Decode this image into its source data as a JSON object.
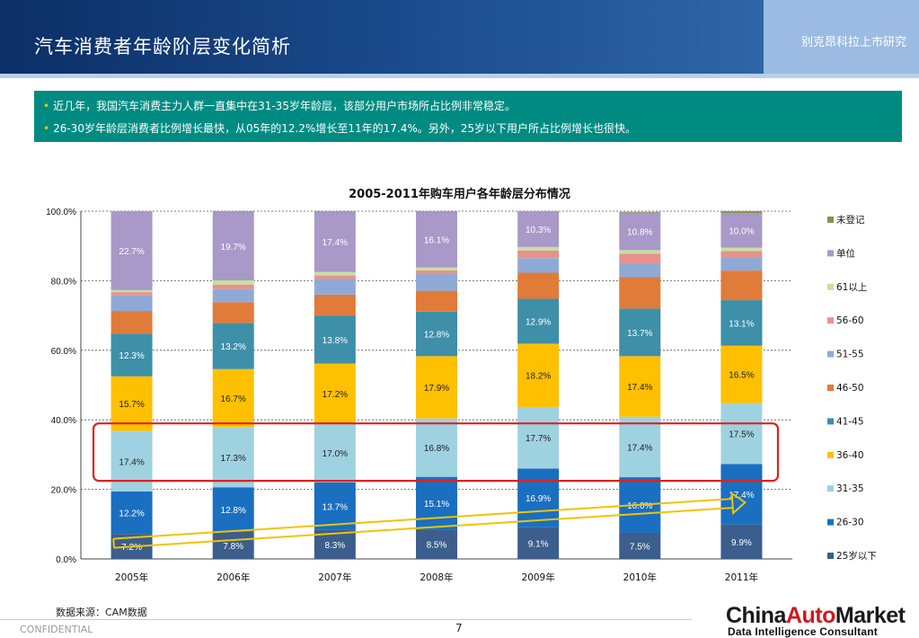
{
  "header": {
    "title": "汽车消费者年龄阶层变化简析",
    "tag": "别克昂科拉上市研究"
  },
  "summary": {
    "lines": [
      "近几年，我国汽车消费主力人群一直集中在31-35岁年龄层，该部分用户市场所占比例非常稳定。",
      "26-30岁年龄层消费者比例增长最快，从05年的12.2%增长至11年的17.4%。另外，25岁以下用户所占比例增长也很快。"
    ]
  },
  "footer": {
    "source": "数据来源：CAM数据",
    "confidential": "CONFIDENTIAL",
    "page": "7"
  },
  "logo": {
    "main_a": "China",
    "main_b": "Auto",
    "main_c": "Market",
    "sub": "Data Intelligence Consultant"
  },
  "chart_data": {
    "type": "bar",
    "stacked": true,
    "title": "2005-2011年购车用户各年龄层分布情况",
    "xlabel": "",
    "ylabel": "",
    "categories": [
      "2005年",
      "2006年",
      "2007年",
      "2008年",
      "2009年",
      "2010年",
      "2011年"
    ],
    "ylim": [
      0,
      100
    ],
    "yticks": [
      "0.0%",
      "20.0%",
      "40.0%",
      "60.0%",
      "80.0%",
      "100.0%"
    ],
    "grid": true,
    "legend_position": "right",
    "series": [
      {
        "name": "25岁以下",
        "color": "#3b5e8c",
        "values": [
          7.2,
          7.8,
          8.3,
          8.5,
          9.1,
          7.5,
          9.9
        ],
        "labels": [
          "7.2%",
          "7.8%",
          "8.3%",
          "8.5%",
          "9.1%",
          "7.5%",
          "9.9%"
        ]
      },
      {
        "name": "26-30",
        "color": "#1a6fc0",
        "values": [
          12.2,
          12.8,
          13.7,
          15.1,
          16.9,
          16.0,
          17.4
        ],
        "labels": [
          "12.2%",
          "12.8%",
          "13.7%",
          "15.1%",
          "16.9%",
          "16.0%",
          "17.4%"
        ]
      },
      {
        "name": "31-35",
        "color": "#9fd2e1",
        "values": [
          17.4,
          17.3,
          17.0,
          16.8,
          17.7,
          17.4,
          17.5
        ],
        "labels": [
          "17.4%",
          "17.3%",
          "17.0%",
          "16.8%",
          "17.7%",
          "17.4%",
          "17.5%"
        ]
      },
      {
        "name": "36-40",
        "color": "#ffc000",
        "values": [
          15.7,
          16.7,
          17.2,
          17.9,
          18.2,
          17.4,
          16.5
        ],
        "labels": [
          "15.7%",
          "16.7%",
          "17.2%",
          "17.9%",
          "18.2%",
          "17.4%",
          "16.5%"
        ]
      },
      {
        "name": "41-45",
        "color": "#3e8fa8",
        "values": [
          12.3,
          13.2,
          13.8,
          12.8,
          12.9,
          13.7,
          13.1
        ],
        "labels": [
          "12.3%",
          "13.2%",
          "13.8%",
          "12.8%",
          "12.9%",
          "13.7%",
          "13.1%"
        ]
      },
      {
        "name": "46-50",
        "color": "#e07b39",
        "values": [
          6.5,
          6.0,
          6.0,
          6.0,
          7.5,
          9.0,
          8.5
        ],
        "labels": [
          "",
          "",
          "",
          "",
          "",
          "",
          ""
        ]
      },
      {
        "name": "51-55",
        "color": "#8fa9d6",
        "values": [
          4.5,
          3.8,
          4.5,
          4.8,
          4.2,
          4.0,
          3.8
        ],
        "labels": [
          "",
          "",
          "",
          "",
          "",
          "",
          ""
        ]
      },
      {
        "name": "56-60",
        "color": "#e8928c",
        "values": [
          0.9,
          1.3,
          1.0,
          1.1,
          2.2,
          2.8,
          1.8
        ],
        "labels": [
          "",
          "",
          "",
          "",
          "",
          "",
          ""
        ]
      },
      {
        "name": "61以上",
        "color": "#c7dfa0",
        "values": [
          0.6,
          1.2,
          1.0,
          0.8,
          1.0,
          1.0,
          1.0
        ],
        "labels": [
          "",
          "",
          "",
          "",
          "",
          "",
          ""
        ]
      },
      {
        "name": "单位",
        "color": "#a899c8",
        "values": [
          22.7,
          19.7,
          17.4,
          16.1,
          10.3,
          10.8,
          10.0
        ],
        "labels": [
          "22.7%",
          "19.7%",
          "17.4%",
          "16.1%",
          "10.3%",
          "10.8%",
          "10.0%"
        ]
      },
      {
        "name": "未登记",
        "color": "#8c8f4a",
        "values": [
          0.0,
          0.2,
          0.1,
          0.1,
          0.0,
          0.2,
          0.5
        ],
        "labels": [
          "",
          "",
          "",
          "",
          "",
          "",
          ""
        ]
      }
    ],
    "highlight": {
      "series": "31-35",
      "color": "#e02020"
    },
    "trend_arrow": {
      "from_category": "2005年",
      "to_category": "2011年",
      "series": "26-30",
      "color": "#f2c300"
    }
  }
}
